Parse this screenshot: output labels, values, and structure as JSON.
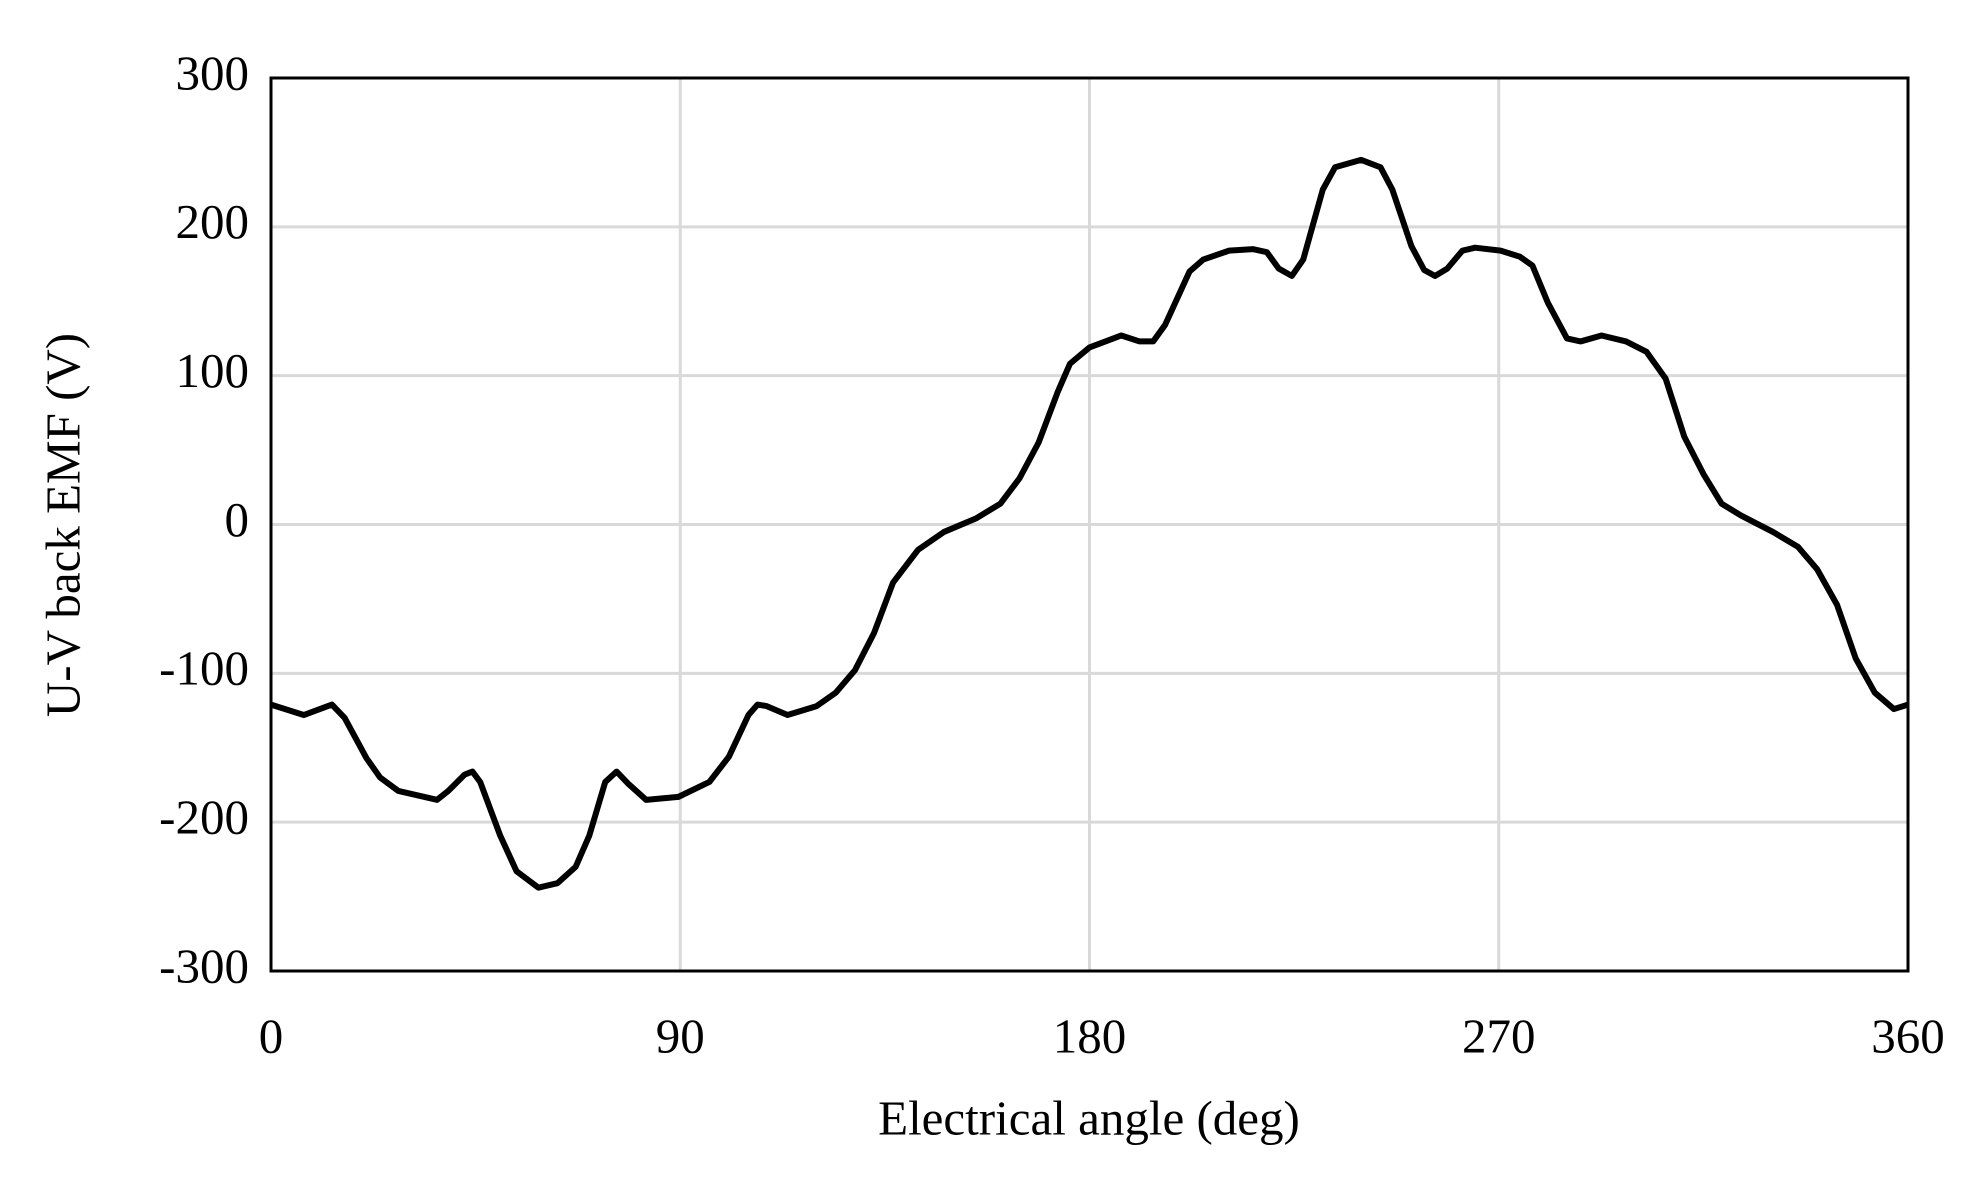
{
  "chart_data": {
    "type": "line",
    "x_label": "Electrical angle (deg)",
    "y_label": "U-V back EMF (V)",
    "x": [
      0,
      7.2,
      13.4,
      16.2,
      21,
      24,
      28,
      36.5,
      39,
      42.6,
      44.3,
      46,
      50.4,
      54,
      58.8,
      63,
      67,
      70,
      73.5,
      76,
      78.5,
      82.5,
      89.6,
      96.4,
      100.7,
      105,
      107,
      109,
      113.6,
      120,
      124.2,
      128.4,
      132.6,
      136.8,
      142.3,
      148,
      155,
      160.4,
      164.6,
      168.8,
      173,
      175.7,
      180,
      187,
      191,
      194,
      196.6,
      202,
      205,
      210.7,
      216,
      219,
      221.6,
      224.5,
      227,
      231.3,
      234,
      239.7,
      244,
      246.6,
      250.8,
      253.6,
      256,
      258.7,
      262,
      264.8,
      270.4,
      274.6,
      277.4,
      280.8,
      285,
      288,
      292.6,
      298,
      302.5,
      306.7,
      310.8,
      315,
      319,
      323.3,
      330.3,
      335.8,
      340,
      344.4,
      348.5,
      352.7,
      356.9,
      360
    ],
    "series": [
      {
        "name": "U-V back EMF",
        "color": "#000000",
        "values": [
          -121,
          -128,
          -121,
          -130,
          -157,
          -170,
          -179,
          -185,
          -179,
          -168,
          -166,
          -173,
          -209,
          -233,
          -244,
          -241,
          -230,
          -209,
          -173,
          -166,
          -174,
          -185,
          -183,
          -173,
          -156,
          -128,
          -121,
          -122,
          -128,
          -122,
          -113,
          -98,
          -73,
          -39,
          -17,
          -5,
          4,
          14,
          31,
          55,
          89,
          108,
          119,
          127,
          123,
          123,
          134,
          170,
          178,
          184,
          185,
          183,
          172,
          167,
          178,
          225,
          240,
          245,
          240,
          225,
          187,
          171,
          167,
          172,
          184,
          186,
          184,
          180,
          174,
          149,
          125,
          123,
          127,
          123,
          116,
          98,
          59,
          34,
          14,
          6,
          -5,
          -15,
          -30,
          -54,
          -90,
          -113,
          -124,
          -121
        ]
      }
    ],
    "xlim": [
      0,
      360
    ],
    "xticks": [
      0,
      90,
      180,
      270,
      360
    ],
    "ylim": [
      -300,
      300
    ],
    "yticks": [
      -300,
      -200,
      -100,
      0,
      100,
      200,
      300
    ],
    "grid": true
  }
}
